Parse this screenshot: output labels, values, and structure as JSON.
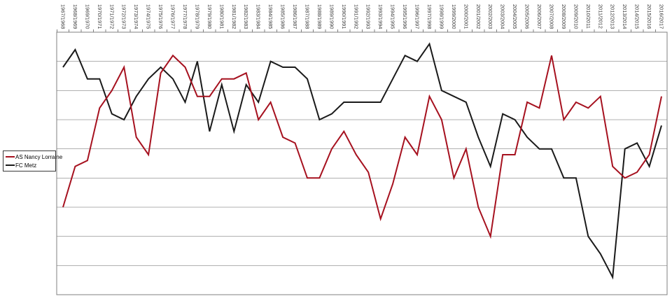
{
  "legend": {
    "items": [
      {
        "label": "AS Nancy Lorraine",
        "color": "#a6111f"
      },
      {
        "label": "FC Metz",
        "color": "#1a1a1a"
      }
    ]
  },
  "chart_data": {
    "type": "line",
    "title": "",
    "xlabel": "",
    "ylabel": "",
    "categories": [
      "1967/1968",
      "1968/1969",
      "1969/1970",
      "1970/1971",
      "1971/1972",
      "1972/1973",
      "1973/1974",
      "1974/1975",
      "1975/1976",
      "1976/1977",
      "1977/1978",
      "1978/1979",
      "1979/1980",
      "1980/1981",
      "1981/1982",
      "1982/1983",
      "1983/1984",
      "1984/1985",
      "1985/1986",
      "1986/1987",
      "1987/1988",
      "1988/1989",
      "1989/1990",
      "1990/1991",
      "1991/1992",
      "1992/1993",
      "1993/1994",
      "1994/1995",
      "1995/1996",
      "1996/1997",
      "1997/1998",
      "1998/1999",
      "1999/2000",
      "2000/2001",
      "2001/2002",
      "2002/2003",
      "2003/2004",
      "2004/2005",
      "2005/2006",
      "2006/2007",
      "2007/2008",
      "2008/2009",
      "2009/2010",
      "2010/2011",
      "2011/2012",
      "2012/2013",
      "2013/2014",
      "2014/2015",
      "2015/2016",
      "2016/2017"
    ],
    "series": [
      {
        "name": "AS Nancy Lorraine",
        "color": "#a6111f",
        "values": [
          30,
          23,
          22,
          13,
          10,
          6,
          18,
          21,
          7,
          4,
          6,
          11,
          11,
          8,
          8,
          7,
          15,
          12,
          18,
          19,
          25,
          25,
          20,
          17,
          21,
          24,
          32,
          26,
          18,
          21,
          11,
          15,
          25,
          20,
          30,
          35,
          21,
          21,
          12,
          13,
          4,
          15,
          12,
          13,
          11,
          23,
          25,
          24,
          21,
          11
        ]
      },
      {
        "name": "FC Metz",
        "color": "#1a1a1a",
        "values": [
          6,
          3,
          8,
          8,
          14,
          15,
          11,
          8,
          6,
          8,
          12,
          5,
          17,
          9,
          17,
          9,
          12,
          5,
          6,
          6,
          8,
          15,
          14,
          12,
          12,
          12,
          12,
          8,
          4,
          5,
          2,
          10,
          11,
          12,
          18,
          23,
          14,
          15,
          18,
          20,
          20,
          25,
          25,
          35,
          38,
          42,
          20,
          19,
          23,
          16
        ]
      }
    ],
    "ylim": [
      0,
      45
    ],
    "y_axis_note": "no y tick labels; 9 horizontal gridlines, one per 5 units; axis inverted (lower value = higher finish, top of chart = best)",
    "x_axis_note": "season labels rotated vertically above the plot",
    "grid": "horizontal-only",
    "legend_position": "left-middle"
  }
}
